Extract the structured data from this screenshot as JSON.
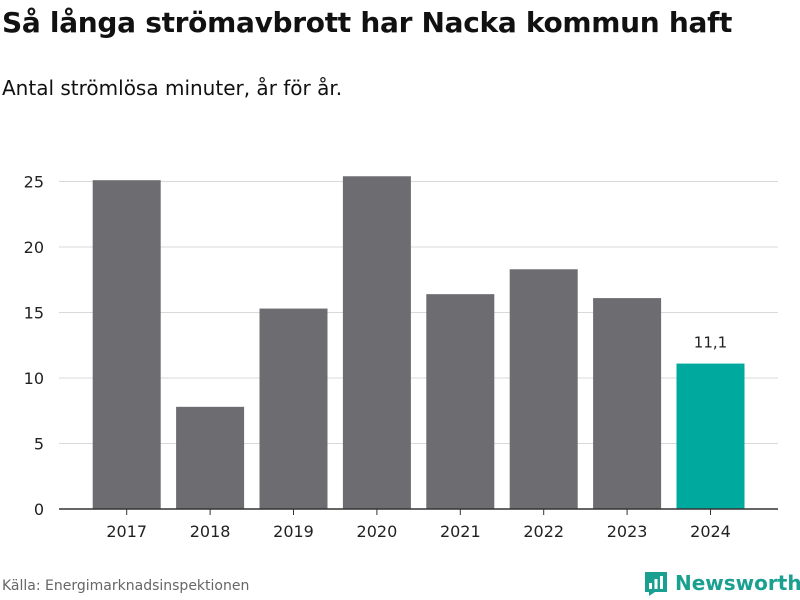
{
  "header": {
    "title": "Så långa strömavbrott har Nacka kommun haft",
    "subtitle": "Antal strömlösa minuter, år för år."
  },
  "footer": {
    "source": "Källa: Energimarknadsinspektionen",
    "brand": "Newsworthy"
  },
  "colors": {
    "bar": "#6d6c71",
    "highlight": "#00a99d",
    "grid": "#d9d9d9",
    "axis": "#333333"
  },
  "chart_data": {
    "type": "bar",
    "title": "Så långa strömavbrott har Nacka kommun haft",
    "subtitle": "Antal strömlösa minuter, år för år.",
    "xlabel": "",
    "ylabel": "",
    "categories": [
      "2017",
      "2018",
      "2019",
      "2020",
      "2021",
      "2022",
      "2023",
      "2024"
    ],
    "values": [
      25.1,
      7.8,
      15.3,
      25.4,
      16.4,
      18.3,
      16.1,
      11.1
    ],
    "highlight_index": 7,
    "data_labels": [
      {
        "index": 7,
        "text": "11,1"
      }
    ],
    "yticks": [
      0,
      5,
      10,
      15,
      20,
      25
    ],
    "ylim": [
      0,
      27
    ],
    "grid": true
  }
}
